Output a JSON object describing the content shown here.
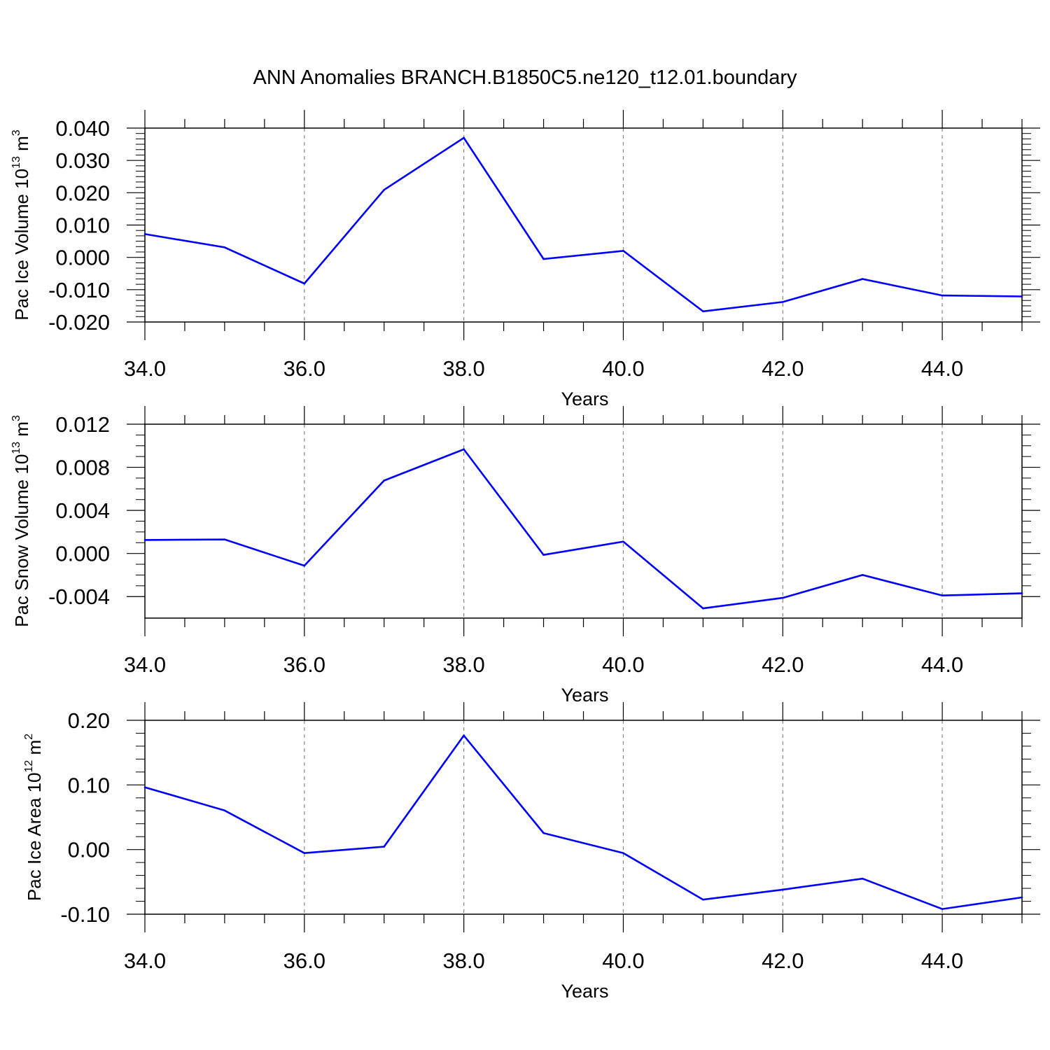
{
  "title": "ANN Anomalies BRANCH.B1850C5.ne120_t12.01.boundary",
  "line_color": "#0000ff",
  "chart_data": [
    {
      "type": "line",
      "ylabel_main": "Pac Ice Volume 10",
      "ylabel_exp": "13",
      "ylabel_unit": " m",
      "ylabel_unit_exp": "3",
      "xlabel": "Years",
      "xlim": [
        34,
        45
      ],
      "ylim": [
        -0.02,
        0.04
      ],
      "x_ticks": [
        34,
        36,
        38,
        40,
        42,
        44
      ],
      "x_tick_labels": [
        "34.0",
        "36.0",
        "38.0",
        "40.0",
        "42.0",
        "44.0"
      ],
      "y_ticks": [
        0.04,
        0.03,
        0.02,
        0.01,
        0.0,
        -0.01,
        -0.02
      ],
      "y_tick_labels": [
        "0.040",
        "0.030",
        "0.020",
        "0.010",
        "0.000",
        "-0.010",
        "-0.020"
      ],
      "grid": "dashed vertical at major x ticks",
      "series": [
        {
          "x": [
            34,
            35,
            36,
            37,
            38,
            39,
            40,
            41,
            42,
            43,
            44,
            45
          ],
          "values": [
            0.0072,
            0.0031,
            -0.0081,
            0.0209,
            0.037,
            -0.0005,
            0.002,
            -0.0167,
            -0.0138,
            -0.0067,
            -0.0118,
            -0.0121
          ]
        }
      ]
    },
    {
      "type": "line",
      "ylabel_main": "Pac Snow Volume 10",
      "ylabel_exp": "13",
      "ylabel_unit": " m",
      "ylabel_unit_exp": "3",
      "xlabel": "Years",
      "xlim": [
        34,
        45
      ],
      "ylim": [
        -0.006,
        0.012
      ],
      "x_ticks": [
        34,
        36,
        38,
        40,
        42,
        44
      ],
      "x_tick_labels": [
        "34.0",
        "36.0",
        "38.0",
        "40.0",
        "42.0",
        "44.0"
      ],
      "y_ticks": [
        0.012,
        0.008,
        0.004,
        0.0,
        -0.004
      ],
      "y_tick_labels": [
        "0.012",
        "0.008",
        "0.004",
        "0.000",
        "-0.004"
      ],
      "grid": "dashed vertical at major x ticks",
      "series": [
        {
          "x": [
            34,
            35,
            36,
            37,
            38,
            39,
            40,
            41,
            42,
            43,
            44,
            45
          ],
          "values": [
            0.00125,
            0.0013,
            -0.00113,
            0.00677,
            0.00967,
            -0.00013,
            0.0011,
            -0.0051,
            -0.00412,
            -0.002,
            -0.0039,
            -0.0037
          ]
        }
      ]
    },
    {
      "type": "line",
      "ylabel_main": "Pac Ice Area 10",
      "ylabel_exp": "12",
      "ylabel_unit": " m",
      "ylabel_unit_exp": "2",
      "xlabel": "Years",
      "xlim": [
        34,
        45
      ],
      "ylim": [
        -0.1,
        0.2
      ],
      "x_ticks": [
        34,
        36,
        38,
        40,
        42,
        44
      ],
      "x_tick_labels": [
        "34.0",
        "36.0",
        "38.0",
        "40.0",
        "42.0",
        "44.0"
      ],
      "y_ticks": [
        0.2,
        0.1,
        0.0,
        -0.1
      ],
      "y_tick_labels": [
        "0.20",
        "0.10",
        "0.00",
        "-0.10"
      ],
      "grid": "dashed vertical at major x ticks",
      "series": [
        {
          "x": [
            34,
            35,
            36,
            37,
            38,
            39,
            40,
            41,
            42,
            43,
            44,
            45
          ],
          "values": [
            0.0963,
            0.0605,
            -0.0055,
            0.0045,
            0.1765,
            0.0255,
            -0.0055,
            -0.0775,
            -0.062,
            -0.045,
            -0.092,
            -0.074
          ]
        }
      ]
    }
  ]
}
